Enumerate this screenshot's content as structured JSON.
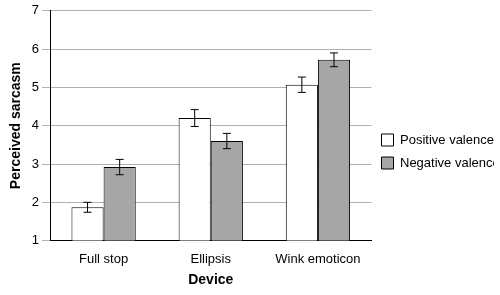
{
  "chart_data": {
    "type": "bar",
    "x_label": "Device",
    "y_label": "Perceived sarcasm",
    "categories": [
      "Full stop",
      "Ellipsis",
      "Wink emoticon"
    ],
    "series": [
      {
        "name": "Positive valence",
        "color": "#ffffff",
        "values": [
          1.87,
          4.2,
          5.07
        ],
        "errors": [
          0.13,
          0.22,
          0.2
        ]
      },
      {
        "name": "Negative valence",
        "color": "#a6a6a6",
        "values": [
          2.92,
          3.6,
          5.72
        ],
        "errors": [
          0.2,
          0.2,
          0.18
        ]
      }
    ],
    "ylim": [
      1,
      7
    ],
    "yticks": [
      1,
      2,
      3,
      4,
      5,
      6,
      7
    ],
    "grid": true,
    "legend": "right"
  }
}
